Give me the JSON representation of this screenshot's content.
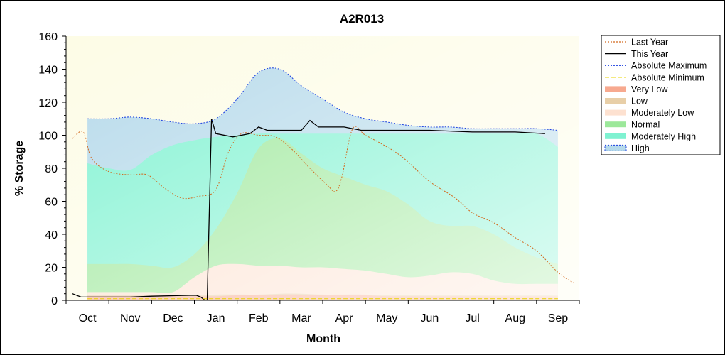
{
  "chart_data": {
    "type": "area",
    "title": "A2R013",
    "xlabel": "Month",
    "ylabel": "% Storage",
    "ylim": [
      0,
      160
    ],
    "yticks": [
      0,
      20,
      40,
      60,
      80,
      100,
      120,
      140,
      160
    ],
    "xlim": [
      -0.5,
      11.5
    ],
    "categories": [
      "Oct",
      "Nov",
      "Dec",
      "Jan",
      "Feb",
      "Mar",
      "Apr",
      "May",
      "Jun",
      "Jul",
      "Aug",
      "Sep"
    ],
    "legend_position": "right",
    "plot_background": "#fdfce6",
    "band_x": [
      0.0,
      0.5,
      1.0,
      1.5,
      2.0,
      2.5,
      3.0,
      3.5,
      4.0,
      4.5,
      5.0,
      5.5,
      6.0,
      6.5,
      7.0,
      7.5,
      8.0,
      8.5,
      9.0,
      9.5,
      10.0,
      10.5,
      11.0
    ],
    "bands": [
      {
        "name": "Very Low",
        "color": "#f7a98f",
        "upper": [
          2.5,
          2.5,
          2.5,
          2.5,
          2.5,
          2.5,
          2.5,
          3,
          3,
          3.5,
          3.5,
          3,
          3,
          3,
          2.5,
          2.5,
          2.5,
          2.5,
          2.5,
          2.5,
          2.5,
          2.5,
          2.5
        ]
      },
      {
        "name": "Low",
        "color": "#e8cfa8",
        "upper": [
          3,
          3,
          3,
          3,
          3,
          3,
          3.5,
          3.5,
          3.5,
          4,
          4,
          3.5,
          3.5,
          3.5,
          3,
          3,
          3,
          3,
          3,
          3,
          3,
          3,
          3
        ]
      },
      {
        "name": "Moderately Low",
        "color": "#fde1d0",
        "upper": [
          5,
          5,
          5,
          5,
          5,
          14,
          21,
          22,
          21,
          21,
          20,
          20,
          19,
          18,
          16,
          14,
          15,
          17,
          16,
          12,
          10,
          10,
          10
        ]
      },
      {
        "name": "Normal",
        "color": "#9ce89a",
        "upper": [
          22,
          22,
          22,
          21,
          20,
          28,
          43,
          65,
          92,
          98,
          89,
          80,
          75,
          70,
          66,
          58,
          48,
          45,
          45,
          40,
          32,
          26,
          22
        ]
      },
      {
        "name": "Moderately High",
        "color": "#7ff2d1",
        "upper": [
          83,
          80,
          79,
          88,
          94,
          97,
          99,
          100,
          101,
          101,
          101,
          101,
          101,
          101,
          101,
          101,
          101,
          101,
          101,
          101,
          101,
          101,
          93
        ]
      },
      {
        "name": "High",
        "color": "#b5d9ea",
        "upper": [
          110,
          110,
          111,
          110,
          108,
          107,
          110,
          122,
          138,
          140,
          130,
          122,
          114,
          110,
          108,
          106,
          105,
          105,
          104,
          104,
          104,
          104,
          103
        ]
      }
    ],
    "series": [
      {
        "name": "Last Year",
        "color": "#d2691e",
        "style": "dotted",
        "x": [
          -0.35,
          -0.1,
          0.1,
          0.5,
          1.0,
          1.4,
          1.8,
          2.2,
          2.6,
          3.0,
          3.3,
          3.6,
          4.0,
          4.4,
          4.8,
          5.2,
          5.6,
          5.8,
          5.95,
          6.2,
          6.5,
          7.0,
          7.4,
          8.0,
          8.6,
          9.0,
          9.5,
          10.0,
          10.5,
          11.0,
          11.4
        ],
        "y": [
          98,
          102,
          86,
          78,
          76,
          76,
          68,
          62,
          63,
          67,
          90,
          101,
          100,
          99,
          91,
          80,
          70,
          66,
          75,
          104,
          100,
          93,
          86,
          72,
          62,
          53,
          47,
          38,
          30,
          17,
          10
        ]
      },
      {
        "name": "This Year",
        "color": "#000000",
        "style": "solid",
        "x": [
          -0.35,
          -0.15,
          0.0,
          0.5,
          1.0,
          1.5,
          2.0,
          2.4,
          2.55,
          2.65,
          2.75,
          2.8,
          2.9,
          3.0,
          3.4,
          3.8,
          4.0,
          4.2,
          4.5,
          5.0,
          5.2,
          5.4,
          5.8,
          6.0,
          6.4,
          6.8,
          7.0,
          8.0,
          9.0,
          10.0,
          10.7
        ],
        "y": [
          4,
          2,
          2,
          2,
          2,
          2.5,
          2.8,
          3,
          3,
          2,
          0,
          0,
          110,
          101,
          99,
          101,
          105,
          103,
          103,
          103,
          109,
          105,
          105,
          105,
          103,
          103,
          103,
          103,
          102,
          102,
          101
        ]
      },
      {
        "name": "Absolute Maximum",
        "color": "#1a3fe0",
        "style": "dotted",
        "x": [
          0.0,
          0.5,
          1.0,
          1.5,
          2.0,
          2.5,
          3.0,
          3.5,
          4.0,
          4.5,
          5.0,
          5.5,
          6.0,
          6.5,
          7.0,
          7.5,
          8.0,
          8.5,
          9.0,
          9.5,
          10.0,
          10.5,
          11.0
        ],
        "y": [
          110,
          110,
          111,
          110,
          108,
          107,
          110,
          122,
          138,
          140,
          130,
          122,
          114,
          110,
          108,
          106,
          105,
          105,
          104,
          104,
          104,
          104,
          103
        ]
      },
      {
        "name": "Absolute Minimum",
        "color": "#e8d400",
        "style": "dashed",
        "x": [
          0,
          1,
          2,
          3,
          4,
          5,
          6,
          7,
          8,
          9,
          10,
          11
        ],
        "y": [
          1,
          1,
          1,
          1,
          1,
          1,
          1,
          1,
          1,
          1,
          1,
          1
        ]
      }
    ],
    "legend": [
      {
        "label": "Last Year",
        "kind": "line",
        "color": "#d2691e",
        "dash": "2,2"
      },
      {
        "label": "This Year",
        "kind": "line",
        "color": "#000000",
        "dash": ""
      },
      {
        "label": "Absolute Maximum",
        "kind": "line",
        "color": "#1a3fe0",
        "dash": "2,2"
      },
      {
        "label": "Absolute Minimum",
        "kind": "line",
        "color": "#e8d400",
        "dash": "6,3"
      },
      {
        "label": "Very Low",
        "kind": "area",
        "color": "#f7a98f"
      },
      {
        "label": "Low",
        "kind": "area",
        "color": "#e8cfa8"
      },
      {
        "label": "Moderately Low",
        "kind": "area",
        "color": "#fde1d0"
      },
      {
        "label": "Normal",
        "kind": "area",
        "color": "#9ce89a"
      },
      {
        "label": "Moderately High",
        "kind": "area",
        "color": "#7ff2d1"
      },
      {
        "label": "High",
        "kind": "area",
        "color": "#b5d9ea",
        "border": "#1a3fe0"
      }
    ]
  }
}
